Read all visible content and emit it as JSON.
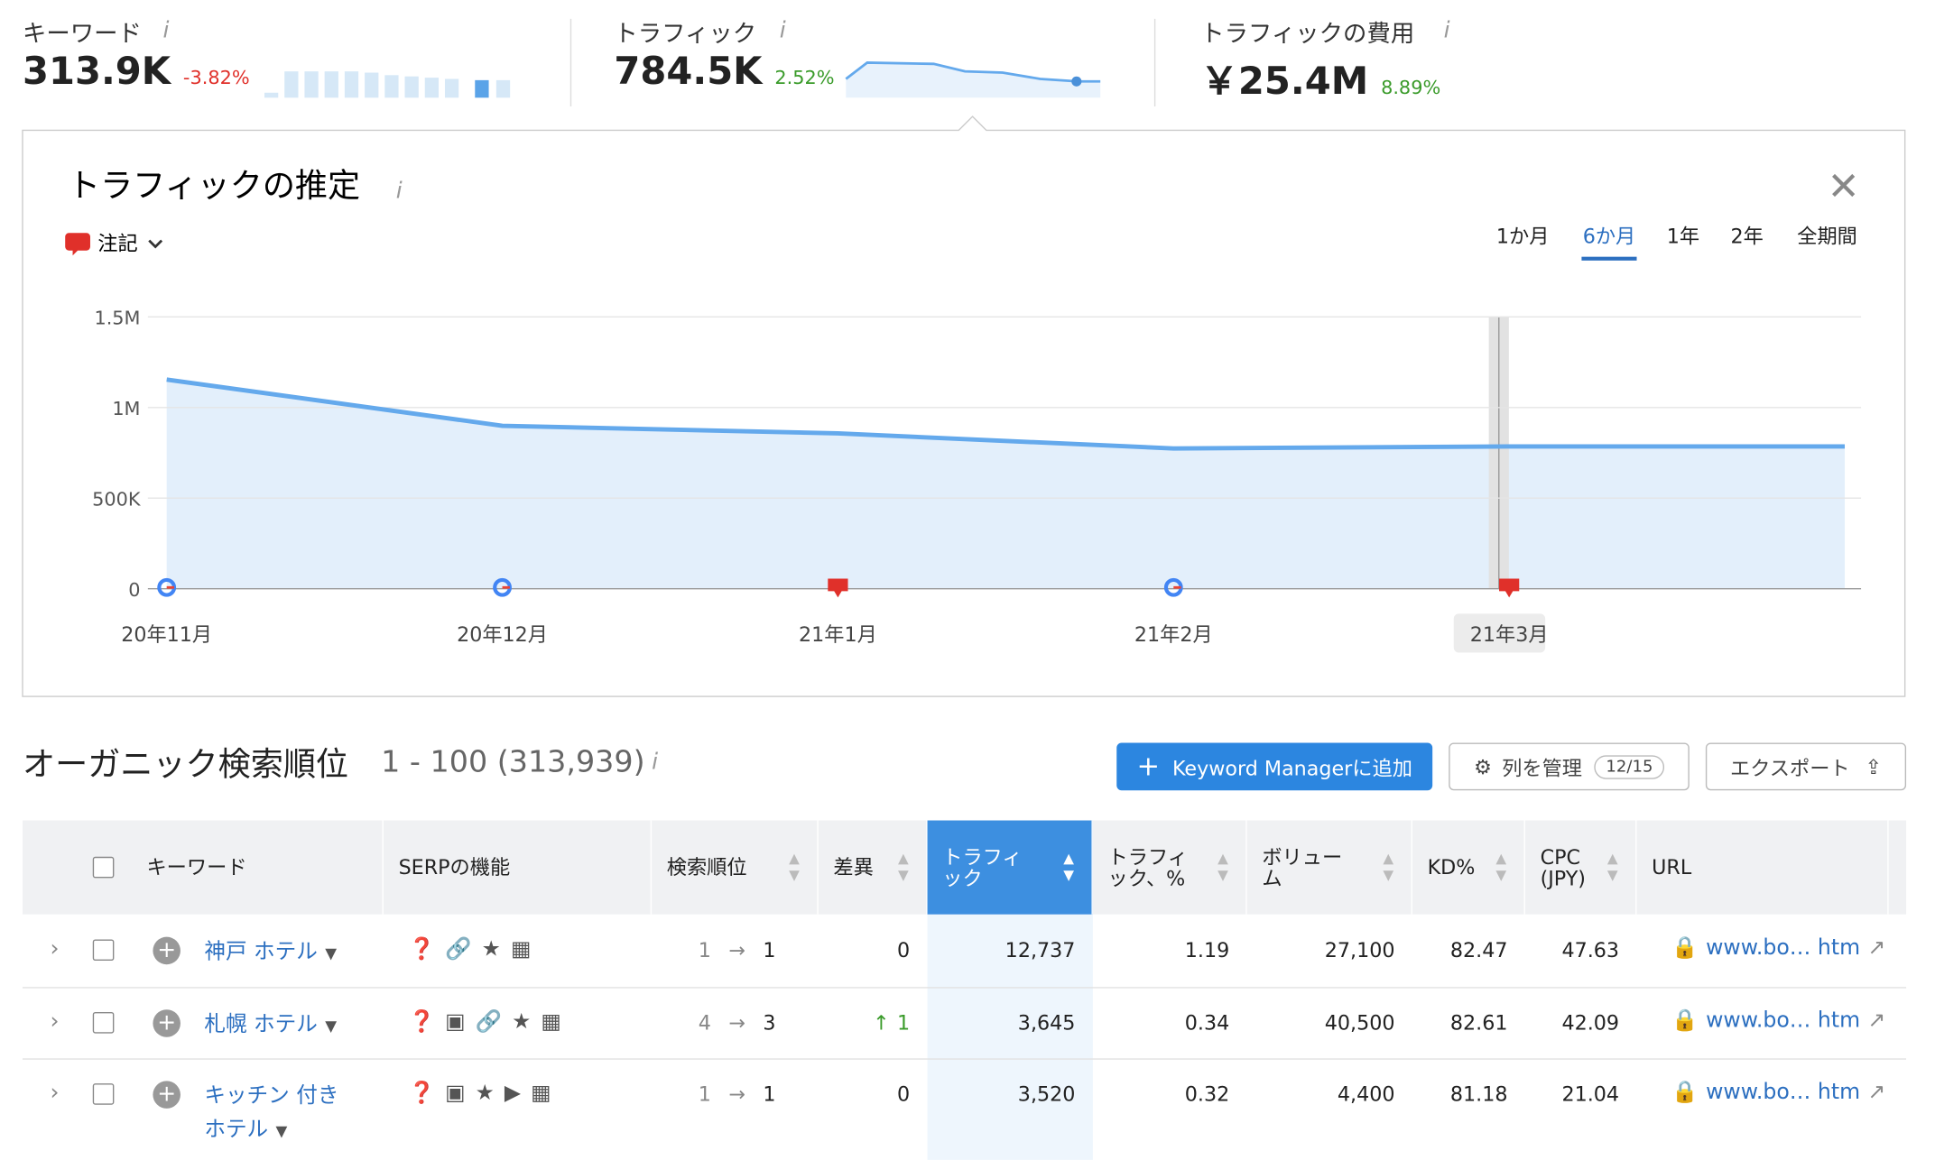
{
  "header": {
    "metrics": [
      {
        "label": "キーワード",
        "value": "313.9K",
        "change": "-3.82%"
      },
      {
        "label": "トラフィック",
        "value": "784.5K",
        "change": "2.52%"
      },
      {
        "label": "トラフィックの費用",
        "value": "￥25.4M",
        "change": "8.89%"
      }
    ]
  },
  "panel": {
    "title": "トラフィックの推定",
    "notes": "注記",
    "tabs": [
      "1か月",
      "6か月",
      "1年",
      "2年",
      "全期間"
    ],
    "active_tab": 1
  },
  "chart_data": {
    "type": "area",
    "categories": [
      "20年11月",
      "20年12月",
      "21年1月",
      "21年2月",
      "21年3月",
      null
    ],
    "values": [
      1154000,
      899000,
      857000,
      774000,
      785000,
      785000
    ],
    "color": "#64a9ec",
    "fill": "#e3effb",
    "ylim": [
      0,
      1500000
    ],
    "yticks": [
      0,
      {
        "value": 500000,
        "label": "500K"
      },
      {
        "value": 1000000,
        "label": "1M"
      },
      {
        "value": 1500000,
        "label": "1.5M"
      }
    ],
    "grid": true,
    "highlight": 4
  },
  "section": {
    "title": "オーガニック検索順位",
    "range": "1 - 100 (313,939)",
    "add_button": "Keyword Managerに追加",
    "columns_button": "列を管理",
    "columns_count": "12/15",
    "export_button": "エクスポート"
  },
  "table": {
    "headers": [
      "キーワード",
      "SERPの機能",
      "検索順位",
      "差異",
      "トラフィック",
      "トラフィック、%",
      "ボリューム",
      "KD%",
      "CPC (JPY)",
      "URL"
    ],
    "rows": [
      [
        "神戸 ホテル",
        "1",
        "1",
        "0",
        "12,737",
        "1.19",
        "27,100",
        "82.47",
        "47.63",
        "www.bo… htm"
      ],
      [
        "札幌 ホテル",
        "4",
        "3",
        "1",
        "3,645",
        "0.34",
        "40,500",
        "82.61",
        "42.09",
        "www.bo… htm"
      ],
      [
        "キッチン 付き ホテル",
        "1",
        "1",
        "0",
        "3,520",
        "0.32",
        "4,400",
        "81.18",
        "21.04",
        "www.bo… htm"
      ]
    ]
  }
}
